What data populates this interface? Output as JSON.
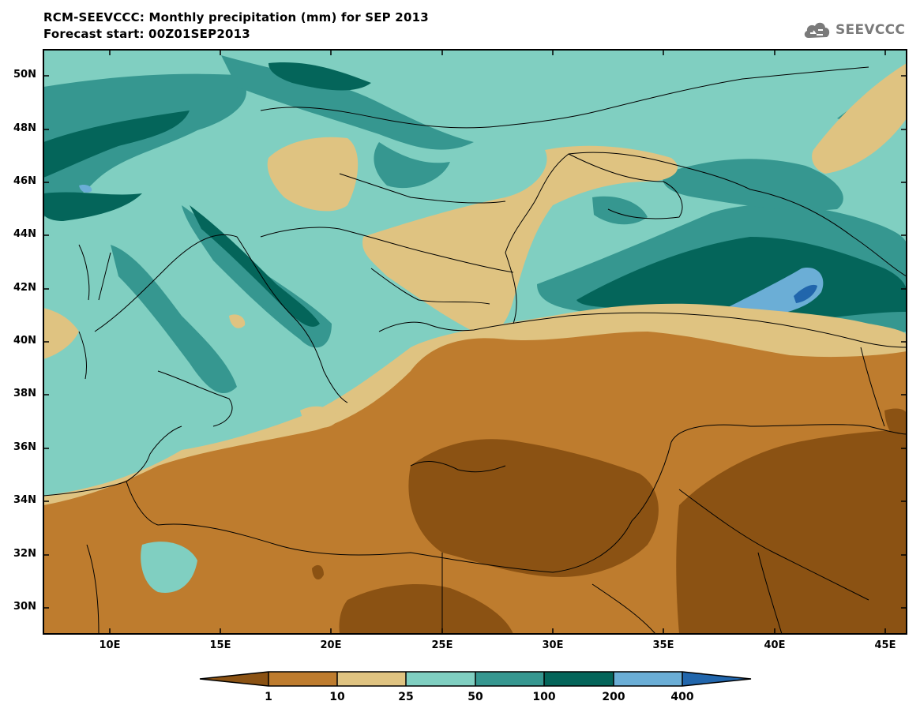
{
  "title": {
    "line1": "RCM-SEEVCCC: Monthly precipitation (mm) for SEP 2013",
    "line2": "Forecast start: 00Z01SEP2013"
  },
  "logo": {
    "text": "SEEVCCC",
    "icon": "cloud-icon"
  },
  "map": {
    "variable": "Monthly precipitation",
    "units": "mm",
    "lon_range": [
      "7E",
      "46E"
    ],
    "lat_range": [
      "29N",
      "51N"
    ],
    "lat_ticks": [
      "50N",
      "48N",
      "46N",
      "44N",
      "42N",
      "40N",
      "38N",
      "36N",
      "34N",
      "32N",
      "30N"
    ],
    "lon_ticks": [
      "10E",
      "15E",
      "20E",
      "25E",
      "30E",
      "35E",
      "40E",
      "45E"
    ]
  },
  "colorbar": {
    "labels": [
      "1",
      "10",
      "25",
      "50",
      "100",
      "200",
      "400"
    ],
    "colors": [
      "#8b5213",
      "#be7c2e",
      "#dfc381",
      "#80cfc1",
      "#369790",
      "#04655a",
      "#6baed6",
      "#2166ac"
    ]
  }
}
